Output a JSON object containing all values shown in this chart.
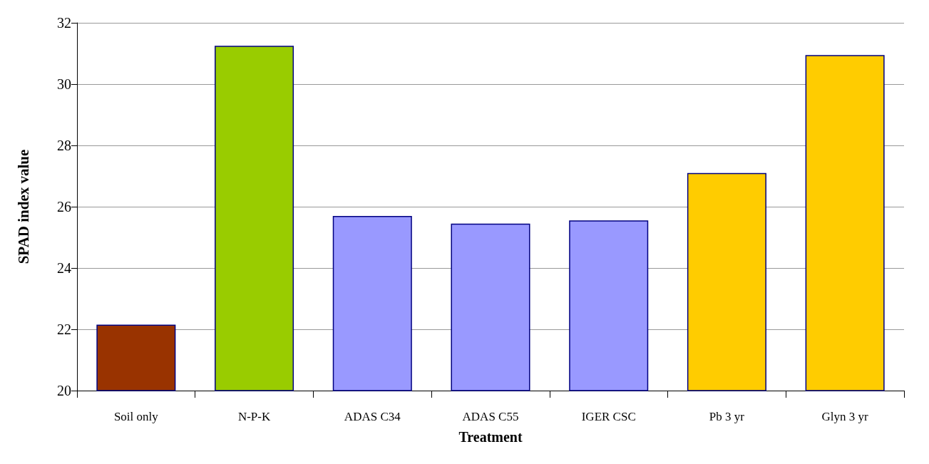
{
  "chart_data": {
    "type": "bar",
    "xlabel": "Treatment",
    "ylabel": "SPAD index value",
    "categories": [
      "Soil only",
      "N-P-K",
      "ADAS C34",
      "ADAS C55",
      "IGER CSC",
      "Pb 3 yr",
      "Glyn 3 yr"
    ],
    "values": [
      22.15,
      31.25,
      25.7,
      25.45,
      25.55,
      27.1,
      30.95
    ],
    "colors": [
      "#993300",
      "#99cc00",
      "#9999ff",
      "#9999ff",
      "#9999ff",
      "#ffcc00",
      "#ffcc00"
    ],
    "ylim": [
      20,
      32
    ],
    "yticks": [
      20,
      22,
      24,
      26,
      28,
      30,
      32
    ],
    "grid": "y"
  }
}
